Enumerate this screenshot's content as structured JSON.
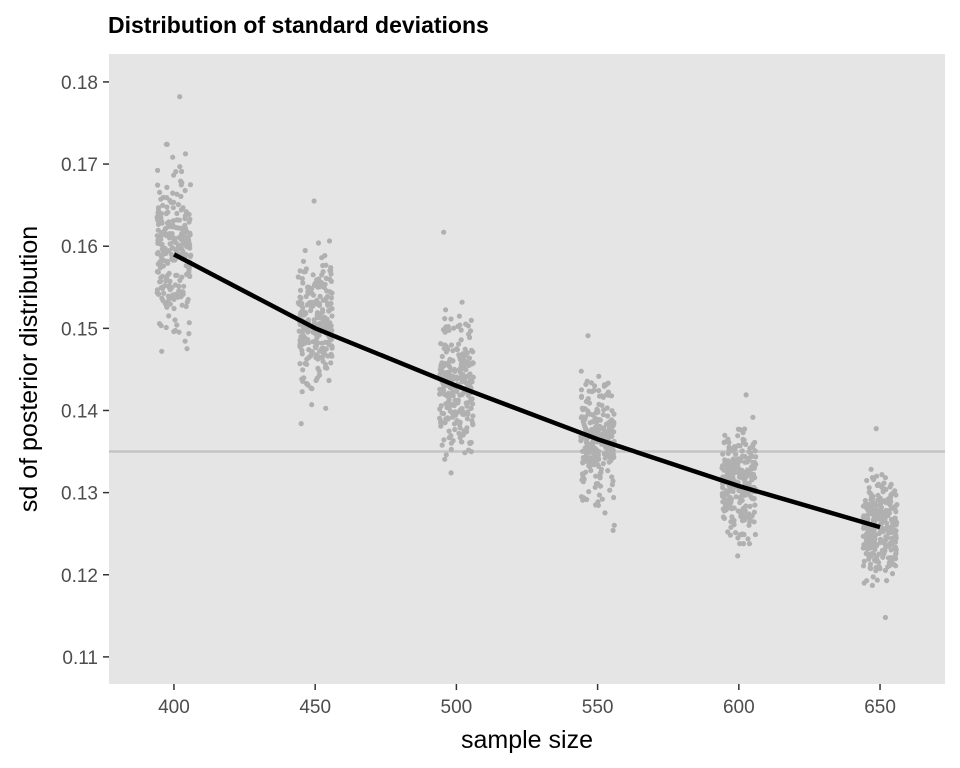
{
  "chart_data": {
    "type": "scatter",
    "title": "Distribution of standard deviations",
    "xlabel": "sample size",
    "ylabel": "sd of posterior distribution",
    "xlim": [
      377,
      673
    ],
    "ylim": [
      0.1067,
      0.1834
    ],
    "x_ticks": [
      400,
      450,
      500,
      550,
      600,
      650
    ],
    "y_ticks": [
      0.11,
      0.12,
      0.13,
      0.14,
      0.15,
      0.16,
      0.17,
      0.18
    ],
    "grid": false,
    "background": "#e5e5e5",
    "point_color": "#b0b0b0",
    "reference_line": {
      "y": 0.135,
      "color": "#c4c4c4"
    },
    "trend_line": {
      "color": "#000000",
      "x": [
        400,
        450,
        500,
        550,
        600,
        650
      ],
      "y": [
        0.159,
        0.15,
        0.143,
        0.1365,
        0.1308,
        0.1258
      ]
    },
    "point_groups": [
      {
        "x": 400,
        "mean": 0.1595,
        "sd": 0.0055,
        "min": 0.1472,
        "max": 0.1782,
        "jitter": 6,
        "n": 260
      },
      {
        "x": 450,
        "mean": 0.1502,
        "sd": 0.0048,
        "min": 0.1384,
        "max": 0.1655,
        "jitter": 6,
        "n": 260
      },
      {
        "x": 500,
        "mean": 0.1432,
        "sd": 0.0045,
        "min": 0.1324,
        "max": 0.1617,
        "jitter": 6,
        "n": 260
      },
      {
        "x": 550,
        "mean": 0.1368,
        "sd": 0.004,
        "min": 0.1254,
        "max": 0.1491,
        "jitter": 6,
        "n": 260
      },
      {
        "x": 600,
        "mean": 0.131,
        "sd": 0.0038,
        "min": 0.1223,
        "max": 0.1419,
        "jitter": 6,
        "n": 260
      },
      {
        "x": 650,
        "mean": 0.1258,
        "sd": 0.0035,
        "min": 0.1148,
        "max": 0.1378,
        "jitter": 6,
        "n": 260
      }
    ]
  }
}
